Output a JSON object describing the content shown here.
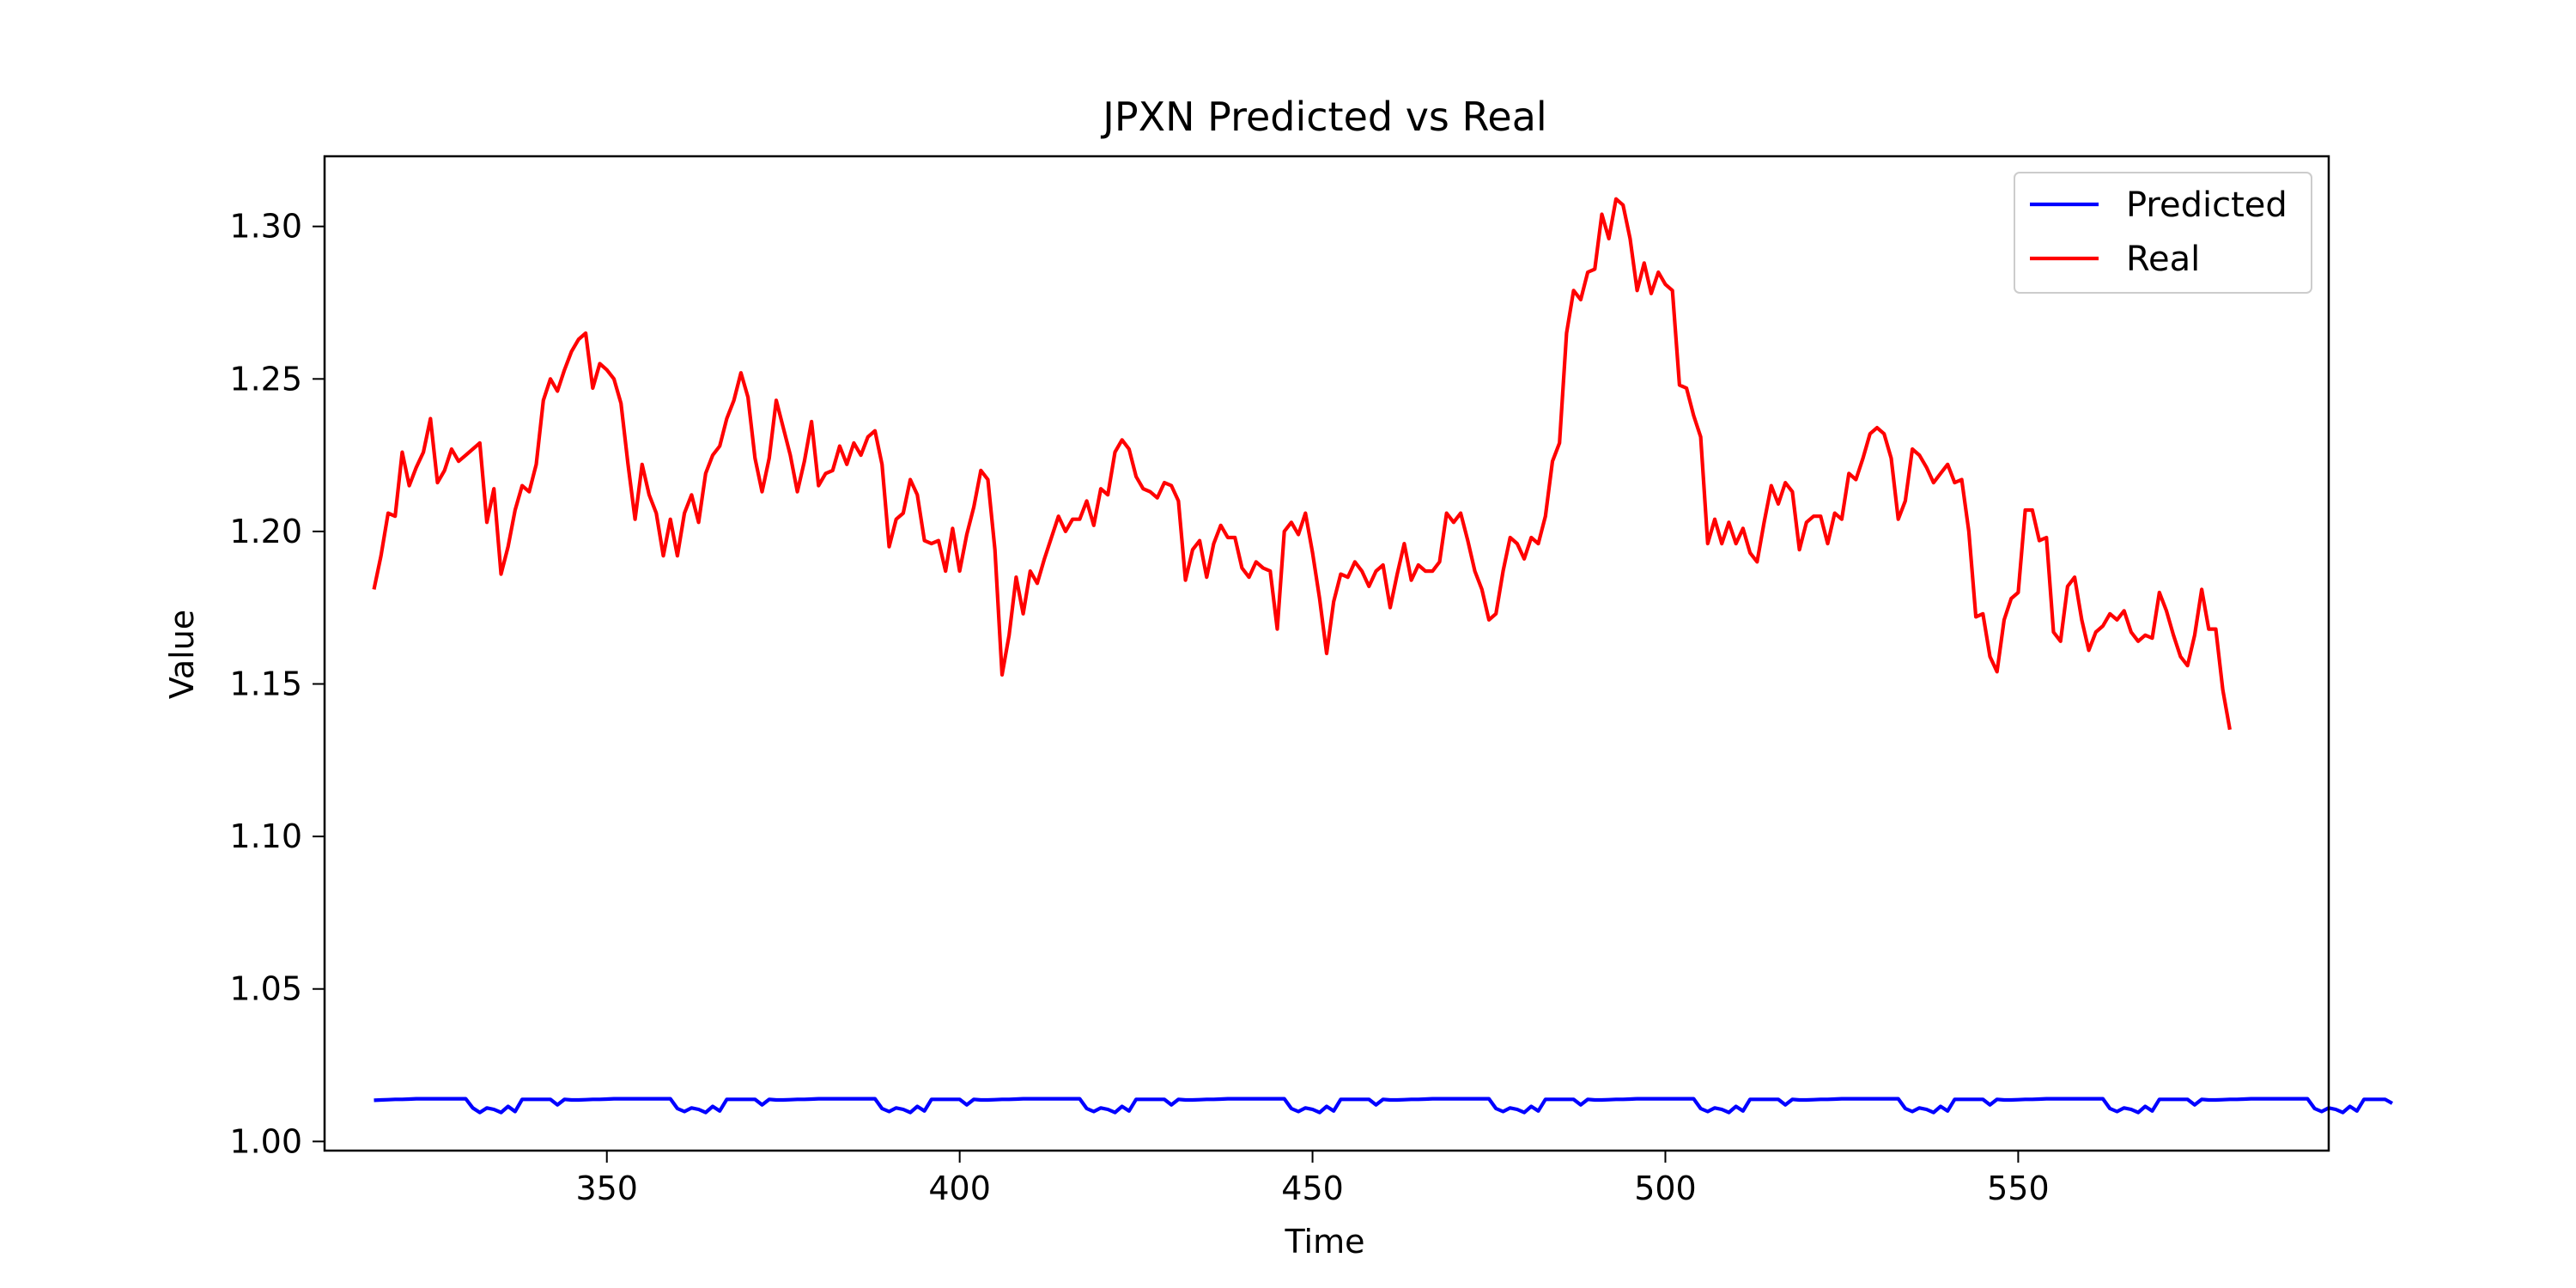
{
  "chart_data": {
    "type": "line",
    "title": "JPXN Predicted vs Real",
    "xlabel": "Time",
    "ylabel": "Value",
    "xlim": [
      310,
      594
    ],
    "ylim": [
      0.997,
      1.323
    ],
    "xticks": [
      350,
      400,
      450,
      500,
      550
    ],
    "yticks": [
      1.0,
      1.05,
      1.1,
      1.15,
      1.2,
      1.25,
      1.3
    ],
    "ytick_labels": [
      "1.00",
      "1.05",
      "1.10",
      "1.15",
      "1.20",
      "1.25",
      "1.30"
    ],
    "legend_position": "upper right",
    "grid": false,
    "x_start": 317,
    "series": [
      {
        "name": "Predicted",
        "color": "#0000ff",
        "values": [
          1.0135,
          1.0136,
          1.0137,
          1.0138,
          1.0138,
          1.0139,
          1.014,
          1.014,
          1.014,
          1.014,
          1.014,
          1.014,
          1.014,
          1.014,
          1.011,
          1.0095,
          1.011,
          1.0105,
          1.0095,
          1.0115,
          1.0098,
          1.0138,
          1.0138,
          1.0138,
          1.0138,
          1.0138,
          1.012,
          1.0138,
          1.0136,
          1.0136,
          1.0137,
          1.0138,
          1.0138,
          1.0139,
          1.014,
          1.014,
          1.014,
          1.014,
          1.014,
          1.014,
          1.014,
          1.014,
          1.014,
          1.0108,
          1.0098,
          1.011,
          1.0105,
          1.0095,
          1.0115,
          1.01,
          1.0138,
          1.0138,
          1.0138,
          1.0138,
          1.0138,
          1.012,
          1.0138,
          1.0136,
          1.0136,
          1.0137,
          1.0138,
          1.0138,
          1.0139,
          1.014,
          1.014,
          1.014,
          1.014,
          1.014,
          1.014,
          1.014,
          1.014,
          1.014,
          1.0108,
          1.0098,
          1.011,
          1.0105,
          1.0095,
          1.0115,
          1.01,
          1.0138,
          1.0138,
          1.0138,
          1.0138,
          1.0138,
          1.012,
          1.0138,
          1.0136,
          1.0136,
          1.0137,
          1.0138,
          1.0138,
          1.0139,
          1.014,
          1.014,
          1.014,
          1.014,
          1.014,
          1.014,
          1.014,
          1.014,
          1.014,
          1.0108,
          1.0098,
          1.011,
          1.0105,
          1.0095,
          1.0115,
          1.01,
          1.0138,
          1.0138,
          1.0138,
          1.0138,
          1.0138,
          1.012,
          1.0138,
          1.0136,
          1.0136,
          1.0137,
          1.0138,
          1.0138,
          1.0139,
          1.014,
          1.014,
          1.014,
          1.014,
          1.014,
          1.014,
          1.014,
          1.014,
          1.014,
          1.0108,
          1.0098,
          1.011,
          1.0105,
          1.0095,
          1.0115,
          1.01,
          1.0138,
          1.0138,
          1.0138,
          1.0138,
          1.0138,
          1.012,
          1.0138,
          1.0136,
          1.0136,
          1.0137,
          1.0138,
          1.0138,
          1.0139,
          1.014,
          1.014,
          1.014,
          1.014,
          1.014,
          1.014,
          1.014,
          1.014,
          1.014,
          1.0108,
          1.0098,
          1.011,
          1.0105,
          1.0095,
          1.0115,
          1.01,
          1.0138,
          1.0138,
          1.0138,
          1.0138,
          1.0138,
          1.012,
          1.0138,
          1.0136,
          1.0136,
          1.0137,
          1.0138,
          1.0138,
          1.0139,
          1.014,
          1.014,
          1.014,
          1.014,
          1.014,
          1.014,
          1.014,
          1.014,
          1.014,
          1.0108,
          1.0098,
          1.011,
          1.0105,
          1.0095,
          1.0115,
          1.01,
          1.0138,
          1.0138,
          1.0138,
          1.0138,
          1.0138,
          1.012,
          1.0138,
          1.0136,
          1.0136,
          1.0137,
          1.0138,
          1.0138,
          1.0139,
          1.014,
          1.014,
          1.014,
          1.014,
          1.014,
          1.014,
          1.014,
          1.014,
          1.014,
          1.0108,
          1.0098,
          1.011,
          1.0105,
          1.0095,
          1.0115,
          1.01,
          1.0138,
          1.0138,
          1.0138,
          1.0138,
          1.0138,
          1.012,
          1.0138,
          1.0136,
          1.0136,
          1.0137,
          1.0138,
          1.0138,
          1.0139,
          1.014,
          1.014,
          1.014,
          1.014,
          1.014,
          1.014,
          1.014,
          1.014,
          1.014,
          1.0108,
          1.0098,
          1.011,
          1.0105,
          1.0095,
          1.0115,
          1.01,
          1.0138,
          1.0138,
          1.0138,
          1.0138,
          1.0138,
          1.012,
          1.0138,
          1.0136,
          1.0136,
          1.0137,
          1.0138,
          1.0138,
          1.0139,
          1.014,
          1.014,
          1.014,
          1.014,
          1.014,
          1.014,
          1.014,
          1.014,
          1.014,
          1.0108,
          1.0098,
          1.011,
          1.0105,
          1.0095,
          1.0115,
          1.01,
          1.0138,
          1.0138,
          1.0138,
          1.0138,
          1.0125
        ]
      },
      {
        "name": "Real",
        "color": "#ff0000",
        "values": [
          1.181,
          1.192,
          1.206,
          1.205,
          1.226,
          1.215,
          1.221,
          1.226,
          1.237,
          1.216,
          1.22,
          1.227,
          1.223,
          1.225,
          1.227,
          1.229,
          1.203,
          1.214,
          1.186,
          1.195,
          1.207,
          1.215,
          1.213,
          1.222,
          1.243,
          1.25,
          1.246,
          1.253,
          1.259,
          1.263,
          1.265,
          1.247,
          1.255,
          1.253,
          1.25,
          1.242,
          1.222,
          1.204,
          1.222,
          1.212,
          1.206,
          1.192,
          1.204,
          1.192,
          1.206,
          1.212,
          1.203,
          1.219,
          1.225,
          1.228,
          1.237,
          1.243,
          1.252,
          1.244,
          1.224,
          1.213,
          1.224,
          1.243,
          1.234,
          1.225,
          1.213,
          1.223,
          1.236,
          1.215,
          1.219,
          1.22,
          1.228,
          1.222,
          1.229,
          1.225,
          1.231,
          1.233,
          1.222,
          1.195,
          1.204,
          1.206,
          1.217,
          1.212,
          1.197,
          1.196,
          1.197,
          1.187,
          1.201,
          1.187,
          1.199,
          1.208,
          1.22,
          1.217,
          1.194,
          1.153,
          1.166,
          1.185,
          1.173,
          1.187,
          1.183,
          1.191,
          1.198,
          1.205,
          1.2,
          1.204,
          1.204,
          1.21,
          1.202,
          1.214,
          1.212,
          1.226,
          1.23,
          1.227,
          1.218,
          1.214,
          1.213,
          1.211,
          1.216,
          1.215,
          1.21,
          1.184,
          1.194,
          1.197,
          1.185,
          1.196,
          1.202,
          1.198,
          1.198,
          1.188,
          1.185,
          1.19,
          1.188,
          1.187,
          1.168,
          1.2,
          1.203,
          1.199,
          1.206,
          1.193,
          1.178,
          1.16,
          1.177,
          1.186,
          1.185,
          1.19,
          1.187,
          1.182,
          1.187,
          1.189,
          1.175,
          1.186,
          1.196,
          1.184,
          1.189,
          1.187,
          1.187,
          1.19,
          1.206,
          1.203,
          1.206,
          1.197,
          1.187,
          1.181,
          1.171,
          1.173,
          1.187,
          1.198,
          1.196,
          1.191,
          1.198,
          1.196,
          1.205,
          1.223,
          1.229,
          1.265,
          1.279,
          1.276,
          1.285,
          1.286,
          1.304,
          1.296,
          1.309,
          1.307,
          1.296,
          1.279,
          1.288,
          1.278,
          1.285,
          1.281,
          1.279,
          1.248,
          1.247,
          1.238,
          1.231,
          1.196,
          1.204,
          1.196,
          1.203,
          1.196,
          1.201,
          1.193,
          1.19,
          1.203,
          1.215,
          1.209,
          1.216,
          1.213,
          1.194,
          1.203,
          1.205,
          1.205,
          1.196,
          1.206,
          1.204,
          1.219,
          1.217,
          1.224,
          1.232,
          1.234,
          1.232,
          1.224,
          1.204,
          1.21,
          1.227,
          1.225,
          1.221,
          1.216,
          1.219,
          1.222,
          1.216,
          1.217,
          1.2,
          1.172,
          1.173,
          1.159,
          1.154,
          1.171,
          1.178,
          1.18,
          1.207,
          1.207,
          1.197,
          1.198,
          1.167,
          1.164,
          1.182,
          1.185,
          1.171,
          1.161,
          1.167,
          1.169,
          1.173,
          1.171,
          1.174,
          1.167,
          1.164,
          1.166,
          1.165,
          1.18,
          1.174,
          1.166,
          1.159,
          1.156,
          1.166,
          1.181,
          1.168,
          1.168,
          1.148,
          1.135
        ]
      }
    ]
  }
}
